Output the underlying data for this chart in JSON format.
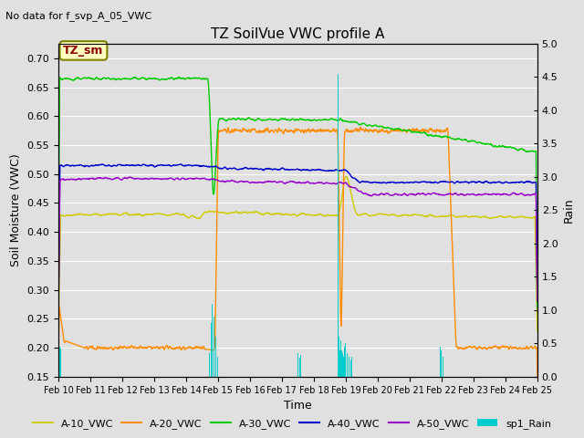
{
  "title": "TZ SoilVue VWC profile A",
  "no_data_text": "No data for f_svp_A_05_VWC",
  "annotation_text": "TZ_sm",
  "xlabel": "Time",
  "ylabel_left": "Soil Moisture (VWC)",
  "ylabel_right": "Rain",
  "xlim": [
    0,
    15
  ],
  "ylim_left": [
    0.15,
    0.725
  ],
  "ylim_right": [
    0.0,
    5.0
  ],
  "yticks_left": [
    0.15,
    0.2,
    0.25,
    0.3,
    0.35,
    0.4,
    0.45,
    0.5,
    0.55,
    0.6,
    0.65,
    0.7
  ],
  "yticks_right": [
    0.0,
    0.5,
    1.0,
    1.5,
    2.0,
    2.5,
    3.0,
    3.5,
    4.0,
    4.5,
    5.0
  ],
  "xtick_labels": [
    "Feb 10",
    "Feb 11",
    "Feb 12",
    "Feb 13",
    "Feb 14",
    "Feb 15",
    "Feb 16",
    "Feb 17",
    "Feb 18",
    "Feb 19",
    "Feb 20",
    "Feb 21",
    "Feb 22",
    "Feb 23",
    "Feb 24",
    "Feb 25"
  ],
  "bg_color": "#e0e0e0",
  "colors": {
    "A10": "#cccc00",
    "A20": "#ff8c00",
    "A30": "#00cc00",
    "A40": "#0000cc",
    "A50": "#9900cc",
    "rain": "#00cccc"
  },
  "legend_labels": [
    "A-10_VWC",
    "A-20_VWC",
    "A-30_VWC",
    "A-40_VWC",
    "A-50_VWC",
    "sp1_Rain"
  ],
  "legend_colors": [
    "#cccc00",
    "#ff8c00",
    "#00cc00",
    "#0000cc",
    "#9900cc",
    "#00cccc"
  ]
}
